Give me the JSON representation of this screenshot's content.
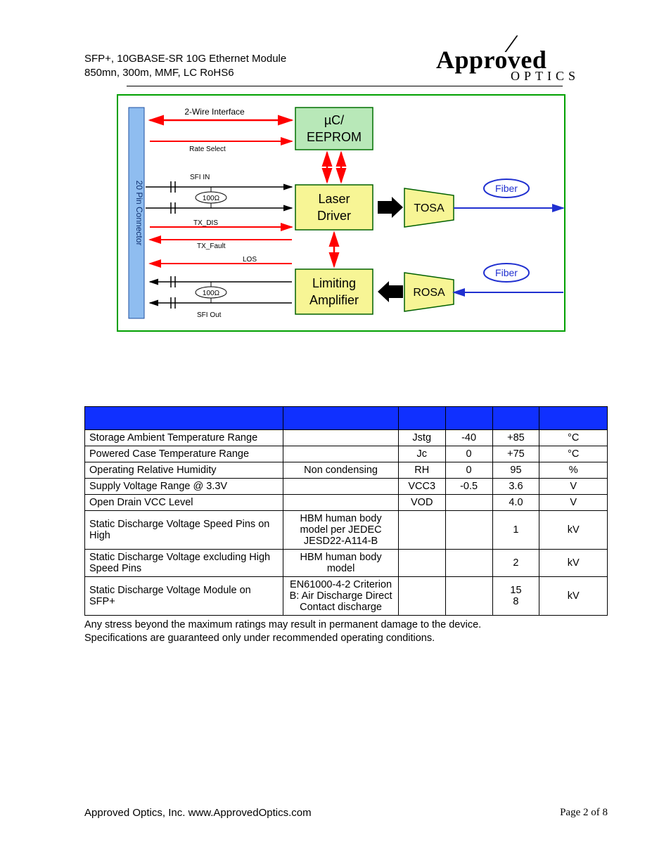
{
  "header": {
    "line1": "SFP+, 10GBASE-SR 10G Ethernet Module",
    "line2": "850mn, 300m, MMF, LC RoHS6"
  },
  "logo": {
    "top": "Approved",
    "bottom": "OPTICS"
  },
  "diagram": {
    "border_color": "#00a000",
    "background": "#ffffff",
    "connector": {
      "label": "20 Pin Connector",
      "fill": "#8fbdf0",
      "stroke": "#1e4fa0",
      "text_color": "#103070",
      "fontsize": 12
    },
    "eeprom": {
      "line1": "µC/",
      "line2": "EEPROM",
      "fill": "#b8e8b8",
      "stroke": "#007000",
      "fontsize": 18
    },
    "laser_driver": {
      "line1": "Laser",
      "line2": "Driver",
      "fill": "#f7f595",
      "stroke": "#006000",
      "fontsize": 18
    },
    "limiting_amp": {
      "line1": "Limiting",
      "line2": "Amplifier",
      "fill": "#f7f595",
      "stroke": "#006000",
      "fontsize": 18
    },
    "tosa": {
      "label": "TOSA",
      "fill": "#f7f595",
      "stroke": "#006000",
      "fontsize": 16
    },
    "rosa": {
      "label": "ROSA",
      "fill": "#f7f595",
      "stroke": "#006000",
      "fontsize": 16
    },
    "fiber1": {
      "label": "Fiber",
      "color": "#2030d0",
      "fontsize": 14
    },
    "fiber2": {
      "label": "Fiber",
      "color": "#2030d0",
      "fontsize": 14
    },
    "labels": {
      "two_wire": "2-Wire Interface",
      "rate_select": "Rate Select",
      "sfi_in": "SFI IN",
      "tx_dis": "TX_DIS",
      "tx_fault": "TX_Fault",
      "los": "LOS",
      "sfi_out": "SFI Out",
      "ohm1": "100Ω",
      "ohm2": "100Ω"
    },
    "arrow_red": "#ff0000",
    "arrow_black": "#000000",
    "label_fontsize": 10
  },
  "table": {
    "header_bg": "#1030ff",
    "col_widths_pct": [
      38,
      22,
      9,
      9,
      9,
      13
    ],
    "rows": [
      {
        "p": "Storage Ambient Temperature Range",
        "c": "",
        "s": "Jstg",
        "min": "-40",
        "max": "+85",
        "u": "°C"
      },
      {
        "p": "Powered Case Temperature Range",
        "c": "",
        "s": "Jc",
        "min": "0",
        "max": "+75",
        "u": "°C"
      },
      {
        "p": "Operating Relative Humidity",
        "c": "Non condensing",
        "s": "RH",
        "min": "0",
        "max": "95",
        "u": "%"
      },
      {
        "p": "Supply Voltage Range @ 3.3V",
        "c": "",
        "s": "VCC3",
        "min": "-0.5",
        "max": "3.6",
        "u": "V"
      },
      {
        "p": "Open Drain VCC Level",
        "c": "",
        "s": "VOD",
        "min": "",
        "max": "4.0",
        "u": "V"
      },
      {
        "p": "Static Discharge Voltage Speed Pins on High",
        "c": "HBM human body model per JEDEC JESD22-A114-B",
        "s": "",
        "min": "",
        "max": "1",
        "u": "kV"
      },
      {
        "p": "Static Discharge Voltage excluding High Speed Pins",
        "c": "HBM human body model",
        "s": "",
        "min": "",
        "max": "2",
        "u": "kV"
      },
      {
        "p": "Static Discharge Voltage Module on SFP+",
        "c": "EN61000-4-2 Criterion B: Air Discharge Direct Contact discharge",
        "s": "",
        "min": "",
        "max": "15\n8",
        "u": "kV"
      }
    ]
  },
  "note": {
    "line1": "Any stress beyond the maximum ratings may result in permanent damage to the device.",
    "line2": "Specifications are guaranteed only under recommended operating conditions."
  },
  "footer": {
    "left": "Approved Optics, Inc.  www.ApprovedOptics.com",
    "right": "Page 2 of 8"
  }
}
